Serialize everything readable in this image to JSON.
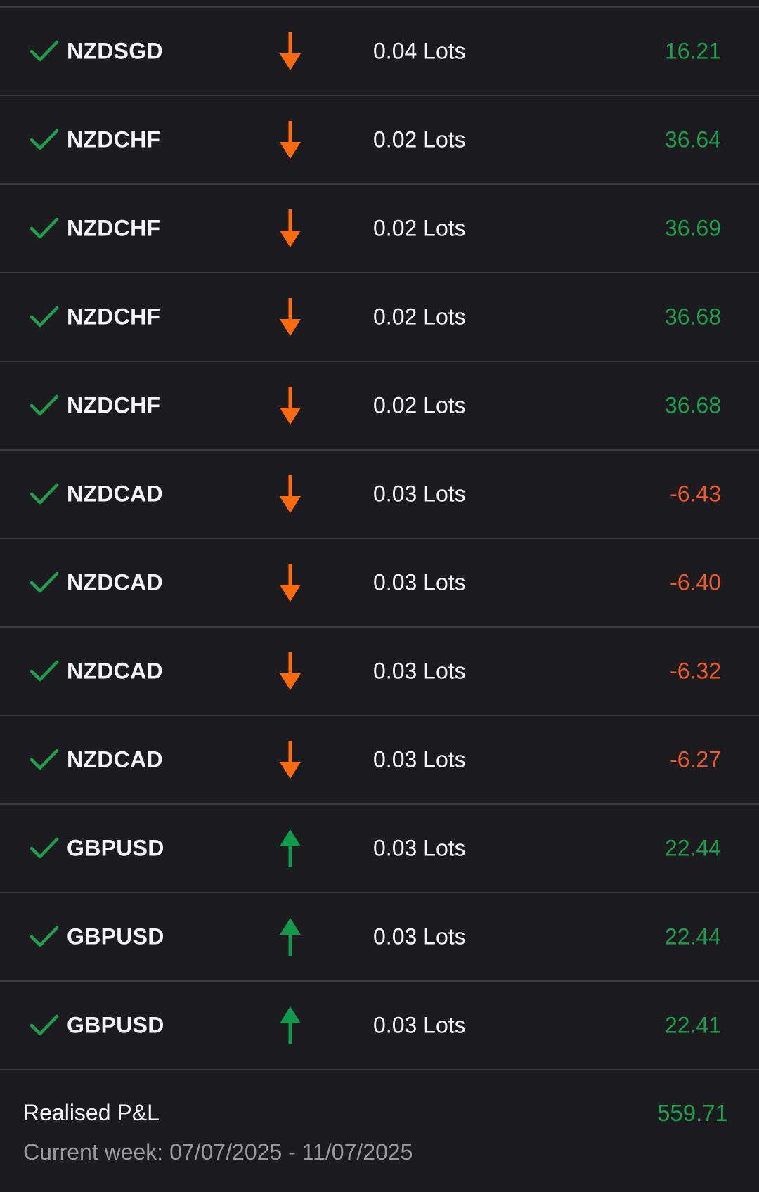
{
  "colors": {
    "background": "#1c1c20",
    "divider": "#3a3a40",
    "text": "#f4f4f6",
    "muted": "#9a9aa0",
    "profit": "#1f9e4c",
    "loss": "#ee5a2a",
    "sell_arrow": "#ff6a0f",
    "buy_arrow": "#12994a",
    "check": "#1f9e4c"
  },
  "trades": [
    {
      "symbol": "NZDSGD",
      "direction": "sell",
      "direction_icon": "arrow-down-icon",
      "lots": "0.04 Lots",
      "pnl": "16.21",
      "pnl_sign": "profit"
    },
    {
      "symbol": "NZDCHF",
      "direction": "sell",
      "direction_icon": "arrow-down-icon",
      "lots": "0.02 Lots",
      "pnl": "36.64",
      "pnl_sign": "profit"
    },
    {
      "symbol": "NZDCHF",
      "direction": "sell",
      "direction_icon": "arrow-down-icon",
      "lots": "0.02 Lots",
      "pnl": "36.69",
      "pnl_sign": "profit"
    },
    {
      "symbol": "NZDCHF",
      "direction": "sell",
      "direction_icon": "arrow-down-icon",
      "lots": "0.02 Lots",
      "pnl": "36.68",
      "pnl_sign": "profit"
    },
    {
      "symbol": "NZDCHF",
      "direction": "sell",
      "direction_icon": "arrow-down-icon",
      "lots": "0.02 Lots",
      "pnl": "36.68",
      "pnl_sign": "profit"
    },
    {
      "symbol": "NZDCAD",
      "direction": "sell",
      "direction_icon": "arrow-down-icon",
      "lots": "0.03 Lots",
      "pnl": "-6.43",
      "pnl_sign": "loss"
    },
    {
      "symbol": "NZDCAD",
      "direction": "sell",
      "direction_icon": "arrow-down-icon",
      "lots": "0.03 Lots",
      "pnl": "-6.40",
      "pnl_sign": "loss"
    },
    {
      "symbol": "NZDCAD",
      "direction": "sell",
      "direction_icon": "arrow-down-icon",
      "lots": "0.03 Lots",
      "pnl": "-6.32",
      "pnl_sign": "loss"
    },
    {
      "symbol": "NZDCAD",
      "direction": "sell",
      "direction_icon": "arrow-down-icon",
      "lots": "0.03 Lots",
      "pnl": "-6.27",
      "pnl_sign": "loss"
    },
    {
      "symbol": "GBPUSD",
      "direction": "buy",
      "direction_icon": "arrow-up-icon",
      "lots": "0.03 Lots",
      "pnl": "22.44",
      "pnl_sign": "profit"
    },
    {
      "symbol": "GBPUSD",
      "direction": "buy",
      "direction_icon": "arrow-up-icon",
      "lots": "0.03 Lots",
      "pnl": "22.44",
      "pnl_sign": "profit"
    },
    {
      "symbol": "GBPUSD",
      "direction": "buy",
      "direction_icon": "arrow-up-icon",
      "lots": "0.03 Lots",
      "pnl": "22.41",
      "pnl_sign": "profit"
    }
  ],
  "summary": {
    "label": "Realised P&L",
    "total": "559.71",
    "week": "Current week: 07/07/2025 - 11/07/2025"
  }
}
